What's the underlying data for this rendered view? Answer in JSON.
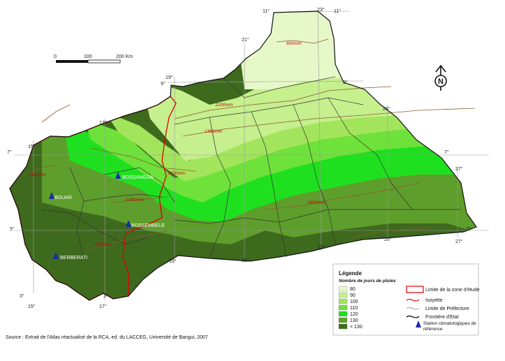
{
  "title": "",
  "source": "Source : Extrait de l'Atlas réactualisé de la RCA, ed. du LACCEG, Université de Bangui, 2007",
  "scale_bar": {
    "labels": [
      "0",
      "100",
      "200 Km"
    ]
  },
  "north_arrow": {
    "letter": "N",
    "icon": "north-arrow-icon"
  },
  "coordinates": {
    "top": [
      "11°",
      "23°",
      "11°"
    ],
    "upper": [
      "21°",
      "19°",
      "9°",
      "9°",
      "25°",
      "17°"
    ],
    "left": [
      "7°",
      "15°",
      "5°",
      "3°",
      "15°"
    ],
    "right": [
      "7°",
      "27°",
      "5°",
      "27°"
    ],
    "bottom": [
      "17°",
      "3°",
      "19°",
      "21°",
      "23°",
      "25°"
    ]
  },
  "isohyets": [
    "600mm",
    "1200mm",
    "1350mm",
    "1500mm",
    "1450mm",
    "1600mm",
    "1650mm",
    "1500mm"
  ],
  "stations": [
    "BOSSANGOA",
    "BOUAR",
    "BOSSEMBELE",
    "BERBERATI"
  ],
  "legend": {
    "title": "Légende",
    "subtitle": "Nombre de jours de pluies",
    "classes": [
      {
        "label": "80",
        "color": "#e6f7c8"
      },
      {
        "label": "90",
        "color": "#c6ef8e"
      },
      {
        "label": "100",
        "color": "#a2e55c"
      },
      {
        "label": "110",
        "color": "#6ee23a"
      },
      {
        "label": "120",
        "color": "#1fe01f"
      },
      {
        "label": "130",
        "color": "#5e9e2c"
      },
      {
        "label": "< 130",
        "color": "#3e6a1e"
      }
    ],
    "symbols": [
      {
        "label": "Limite de la zone d'étude"
      },
      {
        "label": "Isoyette"
      },
      {
        "label": "Limite de Préfecture"
      },
      {
        "label": "Frontière d'Etat"
      },
      {
        "label": "Station climatologiques de référence"
      }
    ]
  }
}
